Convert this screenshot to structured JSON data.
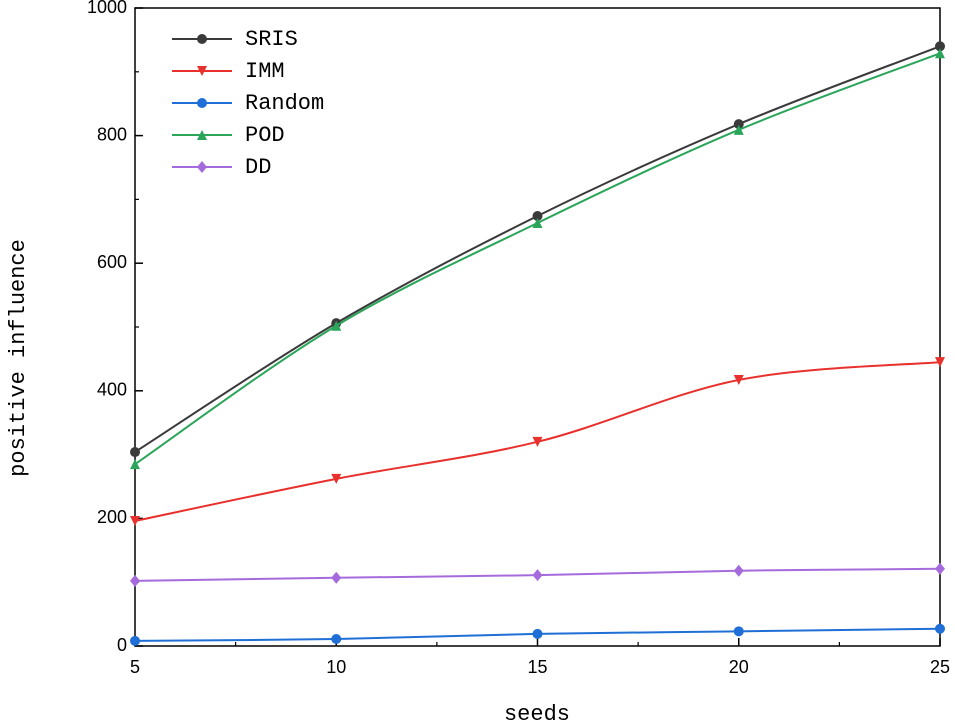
{
  "chart_data": {
    "type": "line",
    "xlabel": "seeds",
    "ylabel": "positive influence",
    "x": [
      5,
      10,
      15,
      20,
      25
    ],
    "series": [
      {
        "name": "SRIS",
        "color": "#3a3a3a",
        "marker": "circle",
        "values": [
          304,
          506,
          674,
          818,
          940
        ]
      },
      {
        "name": "IMM",
        "color": "#e8302c",
        "marker": "triangle-down",
        "values": [
          196,
          262,
          320,
          417,
          445
        ]
      },
      {
        "name": "Random",
        "color": "#1f6fd6",
        "marker": "circle",
        "values": [
          8,
          11,
          19,
          23,
          27
        ]
      },
      {
        "name": "POD",
        "color": "#2aa55a",
        "marker": "triangle-up",
        "values": [
          285,
          502,
          663,
          809,
          929
        ]
      },
      {
        "name": "DD",
        "color": "#a56bdc",
        "marker": "diamond",
        "values": [
          102,
          107,
          111,
          118,
          121
        ]
      }
    ],
    "xlim": [
      5,
      25
    ],
    "xticks": [
      5,
      10,
      15,
      20,
      25
    ],
    "xminorticks": [
      7.5,
      12.5,
      17.5,
      22.5
    ],
    "ylim": [
      0,
      1000
    ],
    "yticks": [
      0,
      200,
      400,
      600,
      800,
      1000
    ],
    "yminorticks": [
      100,
      300,
      500,
      700,
      900
    ],
    "legend": "upper-left"
  }
}
